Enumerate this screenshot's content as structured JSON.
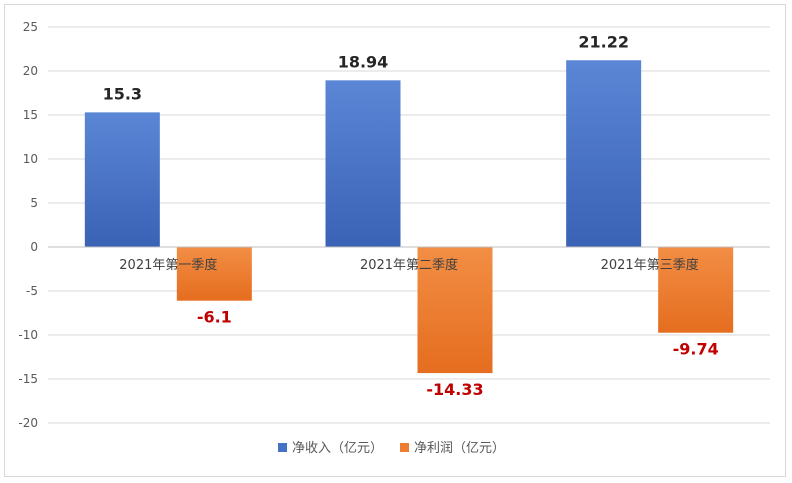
{
  "chart_data": {
    "type": "bar",
    "title": "",
    "xlabel": "",
    "ylabel": "",
    "categories": [
      "2021年第一季度",
      "2021年第二季度",
      "2021年第三季度"
    ],
    "series": [
      {
        "name": "净收入（亿元）",
        "values": [
          15.3,
          18.94,
          21.22
        ],
        "color": "#4472c4"
      },
      {
        "name": "净利润（亿元）",
        "values": [
          -6.1,
          -14.33,
          -9.74
        ],
        "color": "#ed7d31"
      }
    ],
    "data_labels": {
      "净收入（亿元）": [
        "15.3",
        "18.94",
        "21.22"
      ],
      "净利润（亿元）": [
        "-6.1",
        "-14.33",
        "-9.74"
      ]
    },
    "ylim": [
      -20,
      25
    ],
    "yticks": [
      25,
      20,
      15,
      10,
      5,
      0,
      -5,
      -10,
      -15,
      -20
    ],
    "grid": true,
    "legend_position": "bottom",
    "negative_label_color": "#c00000"
  }
}
